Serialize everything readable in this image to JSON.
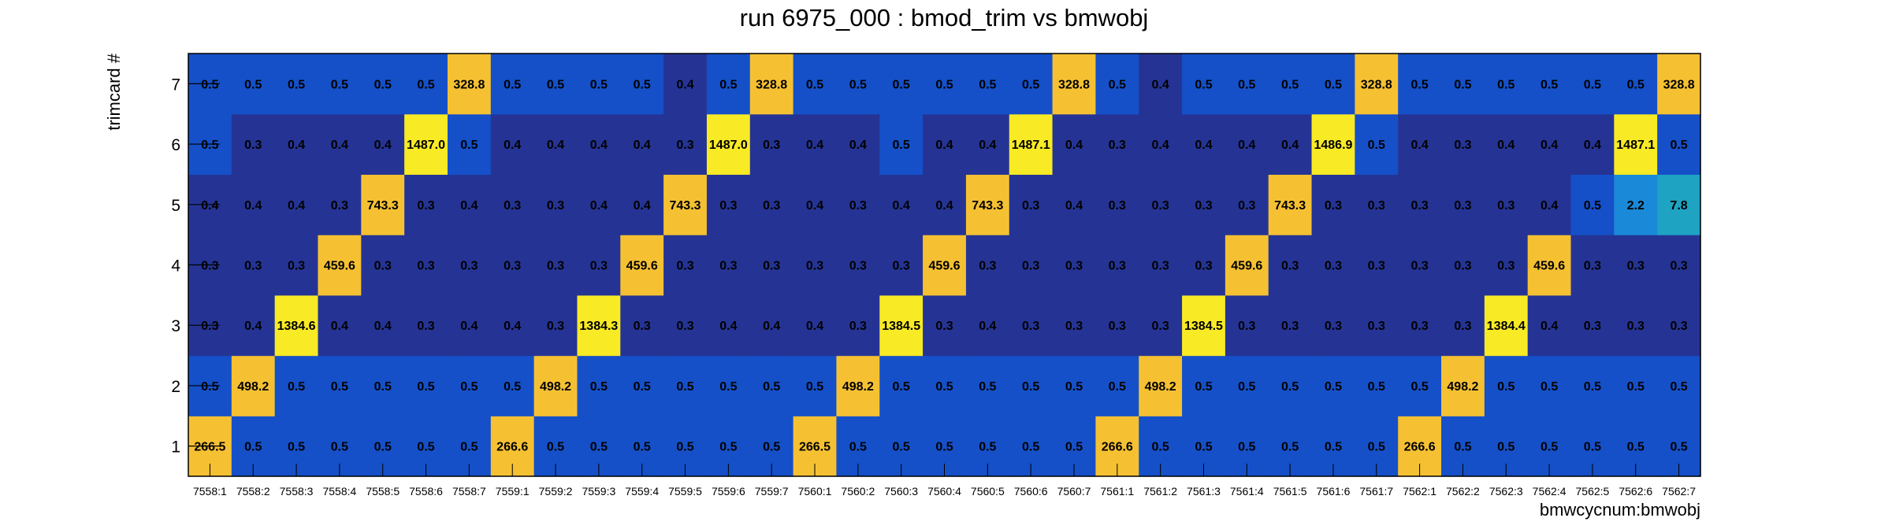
{
  "chart_data": {
    "type": "heatmap",
    "title": "run 6975_000 : bmod_trim vs bmwobj",
    "xlabel": "bmwcycnum:bmwobj",
    "ylabel": "trimcard #",
    "x_categories": [
      "7558:1",
      "7558:2",
      "7558:3",
      "7558:4",
      "7558:5",
      "7558:6",
      "7558:7",
      "7559:1",
      "7559:2",
      "7559:3",
      "7559:4",
      "7559:5",
      "7559:6",
      "7559:7",
      "7560:1",
      "7560:2",
      "7560:3",
      "7560:4",
      "7560:5",
      "7560:6",
      "7560:7",
      "7561:1",
      "7561:2",
      "7561:3",
      "7561:4",
      "7561:5",
      "7561:6",
      "7561:7",
      "7562:1",
      "7562:2",
      "7562:3",
      "7562:4",
      "7562:5",
      "7562:6",
      "7562:7"
    ],
    "y_categories": [
      "1",
      "2",
      "3",
      "4",
      "5",
      "6",
      "7"
    ],
    "values": [
      [
        "266.5",
        "0.5",
        "0.5",
        "0.5",
        "0.5",
        "0.5",
        "0.5",
        "266.6",
        "0.5",
        "0.5",
        "0.5",
        "0.5",
        "0.5",
        "0.5",
        "266.5",
        "0.5",
        "0.5",
        "0.5",
        "0.5",
        "0.5",
        "0.5",
        "266.6",
        "0.5",
        "0.5",
        "0.5",
        "0.5",
        "0.5",
        "0.5",
        "266.6",
        "0.5",
        "0.5",
        "0.5",
        "0.5",
        "0.5",
        "0.5"
      ],
      [
        "0.5",
        "498.2",
        "0.5",
        "0.5",
        "0.5",
        "0.5",
        "0.5",
        "0.5",
        "498.2",
        "0.5",
        "0.5",
        "0.5",
        "0.5",
        "0.5",
        "0.5",
        "498.2",
        "0.5",
        "0.5",
        "0.5",
        "0.5",
        "0.5",
        "0.5",
        "498.2",
        "0.5",
        "0.5",
        "0.5",
        "0.5",
        "0.5",
        "0.5",
        "498.2",
        "0.5",
        "0.5",
        "0.5",
        "0.5",
        "0.5"
      ],
      [
        "0.3",
        "0.4",
        "1384.6",
        "0.4",
        "0.4",
        "0.3",
        "0.4",
        "0.4",
        "0.3",
        "1384.3",
        "0.3",
        "0.3",
        "0.4",
        "0.4",
        "0.4",
        "0.3",
        "1384.5",
        "0.3",
        "0.4",
        "0.3",
        "0.3",
        "0.3",
        "0.3",
        "1384.5",
        "0.3",
        "0.3",
        "0.3",
        "0.3",
        "0.3",
        "0.3",
        "1384.4",
        "0.4",
        "0.3",
        "0.3",
        "0.3"
      ],
      [
        "0.3",
        "0.3",
        "0.3",
        "459.6",
        "0.3",
        "0.3",
        "0.3",
        "0.3",
        "0.3",
        "0.3",
        "459.6",
        "0.3",
        "0.3",
        "0.3",
        "0.3",
        "0.3",
        "0.3",
        "459.6",
        "0.3",
        "0.3",
        "0.3",
        "0.3",
        "0.3",
        "0.3",
        "459.6",
        "0.3",
        "0.3",
        "0.3",
        "0.3",
        "0.3",
        "0.3",
        "459.6",
        "0.3",
        "0.3",
        "0.3"
      ],
      [
        "0.4",
        "0.4",
        "0.4",
        "0.3",
        "743.3",
        "0.3",
        "0.4",
        "0.3",
        "0.3",
        "0.4",
        "0.4",
        "743.3",
        "0.3",
        "0.3",
        "0.4",
        "0.3",
        "0.4",
        "0.4",
        "743.3",
        "0.3",
        "0.4",
        "0.3",
        "0.3",
        "0.3",
        "0.3",
        "743.3",
        "0.3",
        "0.3",
        "0.3",
        "0.3",
        "0.3",
        "0.4",
        "0.5",
        "2.2",
        "7.8"
      ],
      [
        "0.5",
        "0.3",
        "0.4",
        "0.4",
        "0.4",
        "1487.0",
        "0.5",
        "0.4",
        "0.4",
        "0.4",
        "0.4",
        "0.3",
        "1487.0",
        "0.3",
        "0.4",
        "0.4",
        "0.5",
        "0.4",
        "0.4",
        "1487.1",
        "0.4",
        "0.3",
        "0.4",
        "0.4",
        "0.4",
        "0.4",
        "1486.9",
        "0.5",
        "0.4",
        "0.3",
        "0.4",
        "0.4",
        "0.4",
        "1487.1",
        "0.5"
      ],
      [
        "0.5",
        "0.5",
        "0.5",
        "0.5",
        "0.5",
        "0.5",
        "328.8",
        "0.5",
        "0.5",
        "0.5",
        "0.5",
        "0.4",
        "0.5",
        "328.8",
        "0.5",
        "0.5",
        "0.5",
        "0.5",
        "0.5",
        "0.5",
        "328.8",
        "0.5",
        "0.4",
        "0.5",
        "0.5",
        "0.5",
        "0.5",
        "328.8",
        "0.5",
        "0.5",
        "0.5",
        "0.5",
        "0.5",
        "0.5",
        "328.8"
      ]
    ],
    "colors": {
      "low": "#253494",
      "mid": "#1550c8",
      "cyan": "#1a8ad8",
      "teal": "#1ea3c2",
      "gold": "#f5c133",
      "yellow": "#f8ea25",
      "axis": "#000000",
      "background": "#ffffff"
    },
    "grid": false,
    "legend": "none"
  }
}
